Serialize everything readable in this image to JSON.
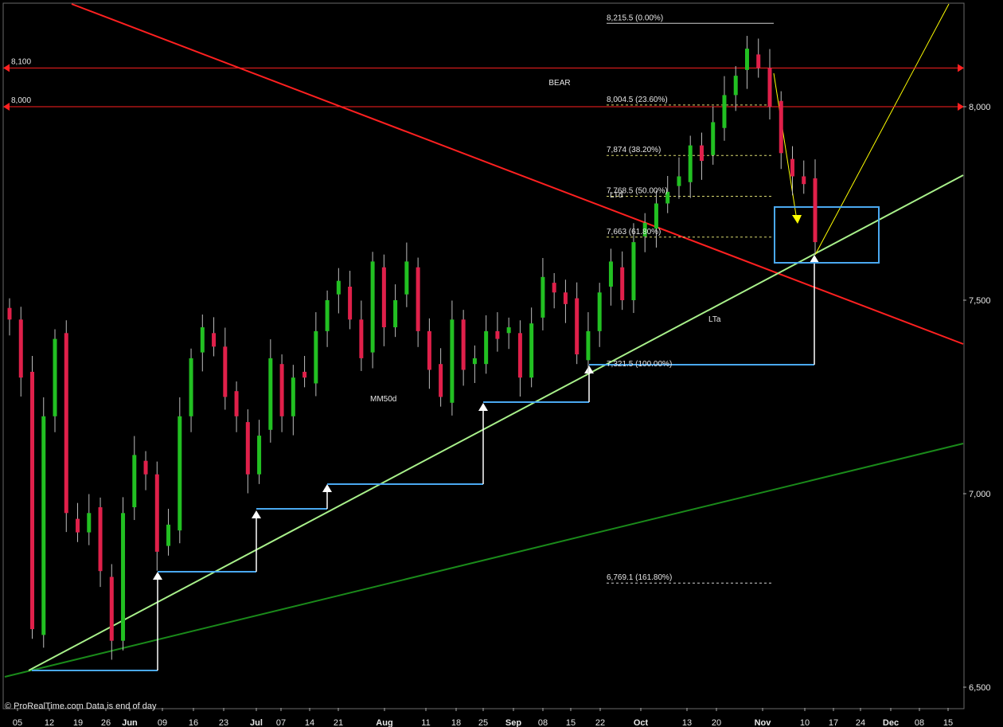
{
  "chart_data": {
    "type": "candlestick",
    "y_axis": {
      "range": [
        6500,
        8300
      ],
      "ticks": [
        "8,000",
        "7,500",
        "7,000",
        "6,500"
      ],
      "tick_values": [
        8000,
        7500,
        7000,
        6500
      ],
      "position": "right"
    },
    "x_axis": {
      "labels": [
        {
          "text": "05",
          "bold": false
        },
        {
          "text": "12",
          "bold": false
        },
        {
          "text": "19",
          "bold": false
        },
        {
          "text": "26",
          "bold": false
        },
        {
          "text": "Jun",
          "bold": true
        },
        {
          "text": "09",
          "bold": false
        },
        {
          "text": "16",
          "bold": false
        },
        {
          "text": "23",
          "bold": false
        },
        {
          "text": "Jul",
          "bold": true
        },
        {
          "text": "07",
          "bold": false
        },
        {
          "text": "14",
          "bold": false
        },
        {
          "text": "21",
          "bold": false
        },
        {
          "text": "Aug",
          "bold": true
        },
        {
          "text": "11",
          "bold": false
        },
        {
          "text": "18",
          "bold": false
        },
        {
          "text": "25",
          "bold": false
        },
        {
          "text": "Sep",
          "bold": true
        },
        {
          "text": "08",
          "bold": false
        },
        {
          "text": "15",
          "bold": false
        },
        {
          "text": "22",
          "bold": false
        },
        {
          "text": "Oct",
          "bold": true
        },
        {
          "text": "13",
          "bold": false
        },
        {
          "text": "20",
          "bold": false
        },
        {
          "text": "Nov",
          "bold": true
        },
        {
          "text": "10",
          "bold": false
        },
        {
          "text": "17",
          "bold": false
        },
        {
          "text": "24",
          "bold": false
        },
        {
          "text": "Dec",
          "bold": true
        },
        {
          "text": "08",
          "bold": false
        },
        {
          "text": "15",
          "bold": false
        }
      ]
    },
    "candles_close": [
      7450,
      7300,
      6650,
      7200,
      7400,
      6950,
      6900,
      6950,
      6800,
      6620,
      6950,
      7100,
      7050,
      6850,
      6920,
      7200,
      7350,
      7430,
      7380,
      7250,
      7200,
      7050,
      7150,
      7350,
      7200,
      7300,
      7300,
      7420,
      7500,
      7550,
      7450,
      7350,
      7600,
      7430,
      7500,
      7600,
      7420,
      7320,
      7250,
      7450,
      7320,
      7350,
      7420,
      7400,
      7430,
      7300,
      7440,
      7560,
      7520,
      7490,
      7360,
      7420,
      7520,
      7600,
      7500,
      7650,
      7700,
      7750,
      7780,
      7820,
      7900,
      7860,
      7960,
      8030,
      8080,
      8150,
      8100,
      8000,
      7880,
      7820,
      7800,
      7650
    ],
    "fibonacci_levels": [
      {
        "label": "8,215.5 (0.00%)",
        "value": 8215.5
      },
      {
        "label": "8,004.5 (23.60%)",
        "value": 8004.5
      },
      {
        "label": "7,874 (38.20%)",
        "value": 7874
      },
      {
        "label": "7,768.5 (50.00%)",
        "value": 7768.5
      },
      {
        "label": "7,663 (61.80%)",
        "value": 7663
      },
      {
        "label": "7,321.5 (100.00%)",
        "value": 7321.5
      },
      {
        "label": "6,769.1 (161.80%)",
        "value": 6769.1
      }
    ],
    "horizontal_lines": [
      {
        "label": "8,100",
        "value": 8100,
        "color": "#ff2020"
      },
      {
        "label": "8,000",
        "value": 8000,
        "color": "#ff2020"
      }
    ],
    "annotations": {
      "bear": "BEAR",
      "ltd": "LTd",
      "lta": "LTa",
      "mm50d": "MM50d"
    },
    "colors": {
      "up": "#22c022",
      "down": "#e0204a",
      "resistance": "#ff2020",
      "support_light": "#a8f08a",
      "support_dark": "#1a8a1a",
      "stairs": "#4aa8f0",
      "projection": "#ffff00"
    }
  },
  "footer": "© ProRealTime.com  Data is end of day"
}
